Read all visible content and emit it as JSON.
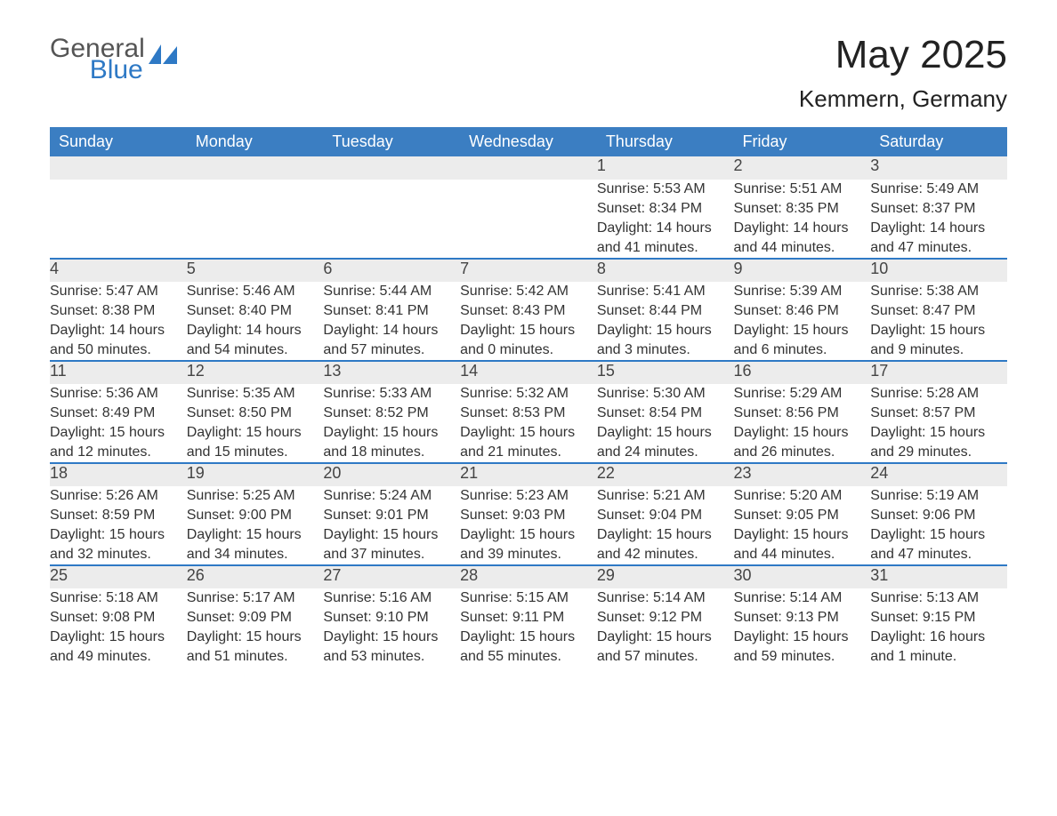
{
  "logo": {
    "word1": "General",
    "word2": "Blue"
  },
  "title": {
    "month": "May 2025",
    "location": "Kemmern, Germany"
  },
  "colors": {
    "header_blue": "#3b7ec2",
    "accent_blue": "#2e79c5",
    "row_gray": "#ececec",
    "text_dark": "#2b2b2b",
    "text_header": "#ffffff",
    "logo_gray": "#555555",
    "logo_blue": "#2e79c5",
    "background": "#ffffff"
  },
  "calendar": {
    "weekday_headers": [
      "Sunday",
      "Monday",
      "Tuesday",
      "Wednesday",
      "Thursday",
      "Friday",
      "Saturday"
    ],
    "weeks": [
      [
        null,
        null,
        null,
        null,
        {
          "day": "1",
          "sunrise": "Sunrise: 5:53 AM",
          "sunset": "Sunset: 8:34 PM",
          "daylight": "Daylight: 14 hours and 41 minutes."
        },
        {
          "day": "2",
          "sunrise": "Sunrise: 5:51 AM",
          "sunset": "Sunset: 8:35 PM",
          "daylight": "Daylight: 14 hours and 44 minutes."
        },
        {
          "day": "3",
          "sunrise": "Sunrise: 5:49 AM",
          "sunset": "Sunset: 8:37 PM",
          "daylight": "Daylight: 14 hours and 47 minutes."
        }
      ],
      [
        {
          "day": "4",
          "sunrise": "Sunrise: 5:47 AM",
          "sunset": "Sunset: 8:38 PM",
          "daylight": "Daylight: 14 hours and 50 minutes."
        },
        {
          "day": "5",
          "sunrise": "Sunrise: 5:46 AM",
          "sunset": "Sunset: 8:40 PM",
          "daylight": "Daylight: 14 hours and 54 minutes."
        },
        {
          "day": "6",
          "sunrise": "Sunrise: 5:44 AM",
          "sunset": "Sunset: 8:41 PM",
          "daylight": "Daylight: 14 hours and 57 minutes."
        },
        {
          "day": "7",
          "sunrise": "Sunrise: 5:42 AM",
          "sunset": "Sunset: 8:43 PM",
          "daylight": "Daylight: 15 hours and 0 minutes."
        },
        {
          "day": "8",
          "sunrise": "Sunrise: 5:41 AM",
          "sunset": "Sunset: 8:44 PM",
          "daylight": "Daylight: 15 hours and 3 minutes."
        },
        {
          "day": "9",
          "sunrise": "Sunrise: 5:39 AM",
          "sunset": "Sunset: 8:46 PM",
          "daylight": "Daylight: 15 hours and 6 minutes."
        },
        {
          "day": "10",
          "sunrise": "Sunrise: 5:38 AM",
          "sunset": "Sunset: 8:47 PM",
          "daylight": "Daylight: 15 hours and 9 minutes."
        }
      ],
      [
        {
          "day": "11",
          "sunrise": "Sunrise: 5:36 AM",
          "sunset": "Sunset: 8:49 PM",
          "daylight": "Daylight: 15 hours and 12 minutes."
        },
        {
          "day": "12",
          "sunrise": "Sunrise: 5:35 AM",
          "sunset": "Sunset: 8:50 PM",
          "daylight": "Daylight: 15 hours and 15 minutes."
        },
        {
          "day": "13",
          "sunrise": "Sunrise: 5:33 AM",
          "sunset": "Sunset: 8:52 PM",
          "daylight": "Daylight: 15 hours and 18 minutes."
        },
        {
          "day": "14",
          "sunrise": "Sunrise: 5:32 AM",
          "sunset": "Sunset: 8:53 PM",
          "daylight": "Daylight: 15 hours and 21 minutes."
        },
        {
          "day": "15",
          "sunrise": "Sunrise: 5:30 AM",
          "sunset": "Sunset: 8:54 PM",
          "daylight": "Daylight: 15 hours and 24 minutes."
        },
        {
          "day": "16",
          "sunrise": "Sunrise: 5:29 AM",
          "sunset": "Sunset: 8:56 PM",
          "daylight": "Daylight: 15 hours and 26 minutes."
        },
        {
          "day": "17",
          "sunrise": "Sunrise: 5:28 AM",
          "sunset": "Sunset: 8:57 PM",
          "daylight": "Daylight: 15 hours and 29 minutes."
        }
      ],
      [
        {
          "day": "18",
          "sunrise": "Sunrise: 5:26 AM",
          "sunset": "Sunset: 8:59 PM",
          "daylight": "Daylight: 15 hours and 32 minutes."
        },
        {
          "day": "19",
          "sunrise": "Sunrise: 5:25 AM",
          "sunset": "Sunset: 9:00 PM",
          "daylight": "Daylight: 15 hours and 34 minutes."
        },
        {
          "day": "20",
          "sunrise": "Sunrise: 5:24 AM",
          "sunset": "Sunset: 9:01 PM",
          "daylight": "Daylight: 15 hours and 37 minutes."
        },
        {
          "day": "21",
          "sunrise": "Sunrise: 5:23 AM",
          "sunset": "Sunset: 9:03 PM",
          "daylight": "Daylight: 15 hours and 39 minutes."
        },
        {
          "day": "22",
          "sunrise": "Sunrise: 5:21 AM",
          "sunset": "Sunset: 9:04 PM",
          "daylight": "Daylight: 15 hours and 42 minutes."
        },
        {
          "day": "23",
          "sunrise": "Sunrise: 5:20 AM",
          "sunset": "Sunset: 9:05 PM",
          "daylight": "Daylight: 15 hours and 44 minutes."
        },
        {
          "day": "24",
          "sunrise": "Sunrise: 5:19 AM",
          "sunset": "Sunset: 9:06 PM",
          "daylight": "Daylight: 15 hours and 47 minutes."
        }
      ],
      [
        {
          "day": "25",
          "sunrise": "Sunrise: 5:18 AM",
          "sunset": "Sunset: 9:08 PM",
          "daylight": "Daylight: 15 hours and 49 minutes."
        },
        {
          "day": "26",
          "sunrise": "Sunrise: 5:17 AM",
          "sunset": "Sunset: 9:09 PM",
          "daylight": "Daylight: 15 hours and 51 minutes."
        },
        {
          "day": "27",
          "sunrise": "Sunrise: 5:16 AM",
          "sunset": "Sunset: 9:10 PM",
          "daylight": "Daylight: 15 hours and 53 minutes."
        },
        {
          "day": "28",
          "sunrise": "Sunrise: 5:15 AM",
          "sunset": "Sunset: 9:11 PM",
          "daylight": "Daylight: 15 hours and 55 minutes."
        },
        {
          "day": "29",
          "sunrise": "Sunrise: 5:14 AM",
          "sunset": "Sunset: 9:12 PM",
          "daylight": "Daylight: 15 hours and 57 minutes."
        },
        {
          "day": "30",
          "sunrise": "Sunrise: 5:14 AM",
          "sunset": "Sunset: 9:13 PM",
          "daylight": "Daylight: 15 hours and 59 minutes."
        },
        {
          "day": "31",
          "sunrise": "Sunrise: 5:13 AM",
          "sunset": "Sunset: 9:15 PM",
          "daylight": "Daylight: 16 hours and 1 minute."
        }
      ]
    ]
  }
}
